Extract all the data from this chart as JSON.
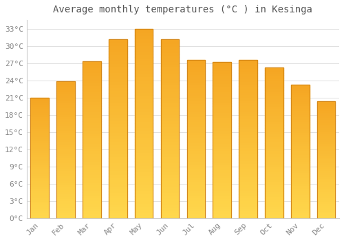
{
  "months": [
    "Jan",
    "Feb",
    "Mar",
    "Apr",
    "May",
    "Jun",
    "Jul",
    "Aug",
    "Sep",
    "Oct",
    "Nov",
    "Dec"
  ],
  "temperatures": [
    21.0,
    23.8,
    27.3,
    31.2,
    33.0,
    31.1,
    27.5,
    27.2,
    27.6,
    26.2,
    23.2,
    20.3
  ],
  "title": "Average monthly temperatures (°C ) in Kesinga",
  "ytick_values": [
    0,
    3,
    6,
    9,
    12,
    15,
    18,
    21,
    24,
    27,
    30,
    33
  ],
  "ytick_labels": [
    "0°C",
    "3°C",
    "6°C",
    "9°C",
    "12°C",
    "15°C",
    "18°C",
    "21°C",
    "24°C",
    "27°C",
    "30°C",
    "33°C"
  ],
  "ylim": [
    0,
    34.5
  ],
  "background_color": "#ffffff",
  "grid_color": "#e0e0e0",
  "title_fontsize": 10,
  "tick_fontsize": 8,
  "bar_color_bottom": "#FFD84D",
  "bar_color_top": "#F5A623",
  "bar_edge_color": "#D4881A",
  "n_grad": 60
}
